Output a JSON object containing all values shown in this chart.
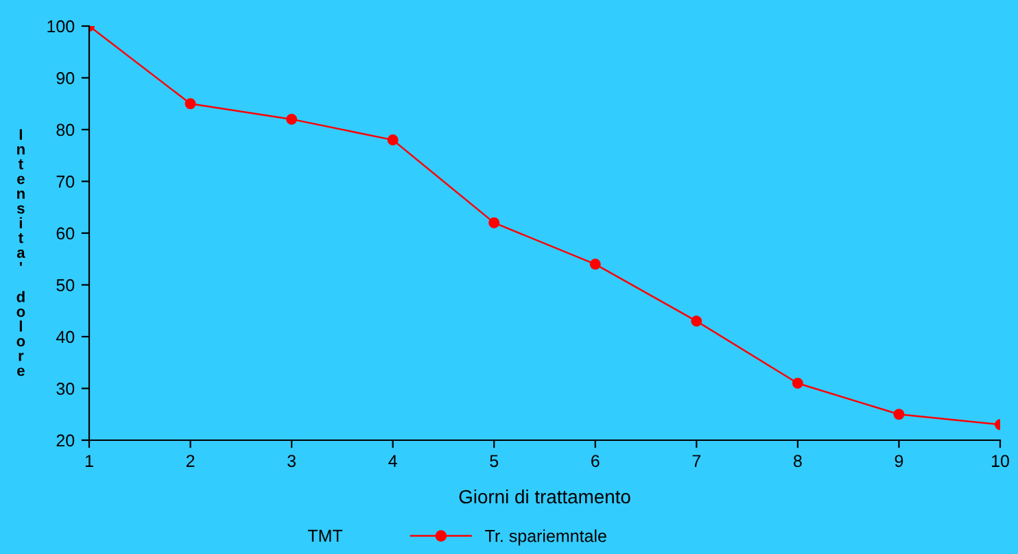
{
  "chart_data": {
    "type": "line",
    "xlabel": "Giorni di trattamento",
    "ylabel": "Intensita' dolore",
    "legend_title": "TMT",
    "x": [
      1,
      2,
      3,
      4,
      5,
      6,
      7,
      8,
      9,
      10
    ],
    "series": [
      {
        "name": "Tr. spariemntale",
        "color": "#ff0000",
        "values": [
          100,
          85,
          82,
          78,
          62,
          54,
          43,
          31,
          25,
          23
        ]
      }
    ],
    "xlim": [
      1,
      10
    ],
    "xticks": [
      1,
      2,
      3,
      4,
      5,
      6,
      7,
      8,
      9,
      10
    ],
    "ylim": [
      20,
      100
    ],
    "yticks": [
      20,
      30,
      40,
      50,
      60,
      70,
      80,
      90,
      100
    ],
    "grid": false,
    "legend": "bottom",
    "marker": "circle",
    "line_style": "solid"
  }
}
